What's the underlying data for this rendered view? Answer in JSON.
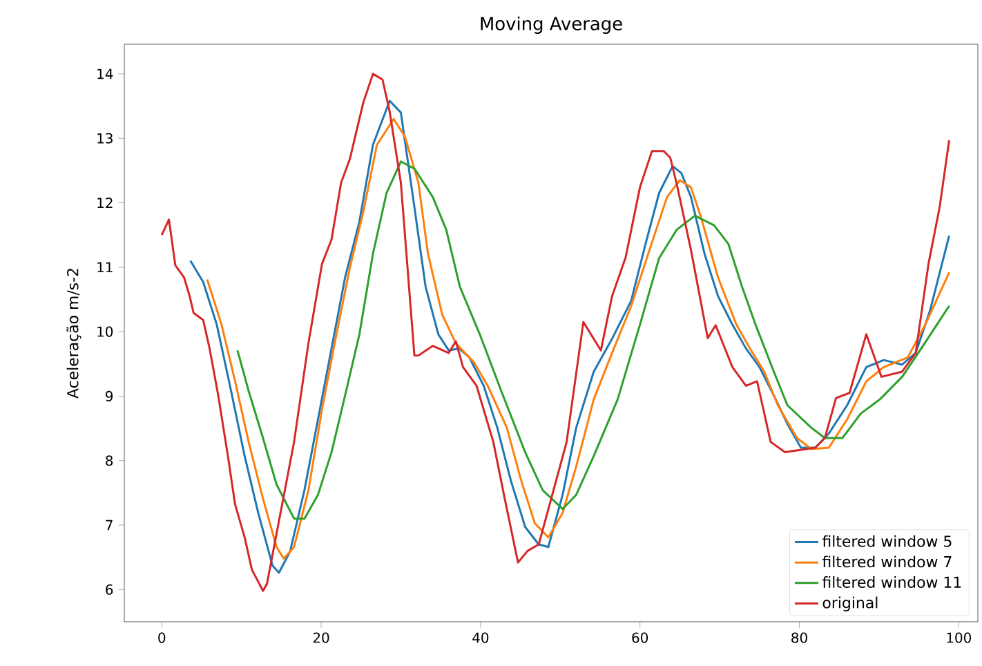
{
  "chart_data": {
    "type": "line",
    "title": "Moving Average",
    "ylabel": "Aceleração m/s-2",
    "xlim": [
      -4.7,
      102.4
    ],
    "ylim": [
      5.5,
      14.46
    ],
    "xticks": [
      0,
      20,
      40,
      60,
      80,
      100
    ],
    "yticks": [
      6,
      7,
      8,
      9,
      10,
      11,
      12,
      13,
      14
    ],
    "grid": false,
    "legend": "bottom right",
    "marker": "none",
    "line_style": "solid",
    "series": [
      {
        "name": "filtered window 5",
        "color": "#1f77b4",
        "x": [
          3.6,
          5.2,
          6.9,
          8.7,
          10.4,
          12.1,
          13.9,
          14.7,
          16.1,
          17.9,
          19.6,
          21.3,
          23,
          24.8,
          26.5,
          28.6,
          30,
          31.7,
          33.1,
          34.7,
          36,
          37.3,
          38.6,
          40.4,
          42.1,
          43.8,
          45.6,
          47.3,
          48.5,
          50.3,
          52,
          54.2,
          56.5,
          58.9,
          60.7,
          62.4,
          64.1,
          65.2,
          66.4,
          68.1,
          69.8,
          71.6,
          73.3,
          75,
          76.8,
          78.5,
          80.2,
          82,
          83.7,
          86,
          88.4,
          90.6,
          92.9,
          94.6,
          96.4,
          98.8
        ],
        "values": [
          11.1,
          10.77,
          10.11,
          9.08,
          8.07,
          7.19,
          6.37,
          6.26,
          6.59,
          7.54,
          8.64,
          9.74,
          10.84,
          11.71,
          12.9,
          13.58,
          13.4,
          11.93,
          10.7,
          9.96,
          9.71,
          9.74,
          9.6,
          9.16,
          8.51,
          7.69,
          6.97,
          6.7,
          6.66,
          7.47,
          8.51,
          9.38,
          9.89,
          10.48,
          11.36,
          12.15,
          12.57,
          12.46,
          12.09,
          11.21,
          10.55,
          10.11,
          9.74,
          9.45,
          9.01,
          8.57,
          8.2,
          8.2,
          8.42,
          8.86,
          9.45,
          9.56,
          9.49,
          9.67,
          10.33,
          11.49
        ]
      },
      {
        "name": "filtered window 7",
        "color": "#ff7f0e",
        "x": [
          5.7,
          7.5,
          9.2,
          10.9,
          12.7,
          14.4,
          15.3,
          16.6,
          18.4,
          20.1,
          21.8,
          23.6,
          25.3,
          27,
          29.1,
          30.5,
          32.2,
          33.4,
          35.2,
          36.9,
          39.2,
          40.9,
          43.3,
          45.1,
          46.8,
          48.5,
          50.3,
          52,
          54.2,
          56.5,
          58.9,
          61.2,
          63.4,
          65,
          66.4,
          67.6,
          69.8,
          72.1,
          73.8,
          75.6,
          77.3,
          79.7,
          81.5,
          83.7,
          86,
          88.4,
          90.6,
          93.6,
          95.8,
          98.8
        ],
        "values": [
          10.81,
          10.11,
          9.23,
          8.29,
          7.41,
          6.66,
          6.48,
          6.66,
          7.54,
          8.79,
          9.89,
          10.99,
          11.87,
          12.9,
          13.3,
          13.03,
          12.31,
          11.21,
          10.26,
          9.82,
          9.52,
          9.16,
          8.51,
          7.69,
          7.03,
          6.81,
          7.19,
          7.91,
          8.95,
          9.67,
          10.4,
          11.27,
          12.09,
          12.35,
          12.24,
          11.8,
          10.84,
          10.11,
          9.74,
          9.38,
          8.86,
          8.35,
          8.18,
          8.2,
          8.64,
          9.23,
          9.45,
          9.6,
          10.11,
          10.92
        ]
      },
      {
        "name": "filtered window 11",
        "color": "#2ca02c",
        "x": [
          9.5,
          10.9,
          12.7,
          14.4,
          16.6,
          17.9,
          19.6,
          21.3,
          23,
          24.8,
          26.5,
          28.2,
          30,
          31.7,
          34,
          35.7,
          37.4,
          39.9,
          42.6,
          45.6,
          47.8,
          50.3,
          52,
          54.2,
          57.2,
          60,
          62.4,
          64.6,
          66.9,
          69.3,
          71.1,
          72.8,
          74.5,
          76.8,
          78.5,
          81.5,
          83.2,
          85.4,
          87.7,
          90.1,
          92.9,
          95.3,
          98.8
        ],
        "values": [
          9.71,
          9.08,
          8.35,
          7.63,
          7.1,
          7.1,
          7.47,
          8.13,
          9.01,
          9.96,
          11.21,
          12.15,
          12.64,
          12.53,
          12.09,
          11.58,
          10.7,
          9.96,
          9.08,
          8.13,
          7.54,
          7.25,
          7.47,
          8.07,
          8.95,
          10.11,
          11.14,
          11.58,
          11.8,
          11.65,
          11.36,
          10.7,
          10.11,
          9.38,
          8.86,
          8.51,
          8.35,
          8.35,
          8.73,
          8.95,
          9.3,
          9.74,
          10.4
        ]
      },
      {
        "name": "original",
        "color": "#d62728",
        "x": [
          0,
          0.9,
          1.7,
          2.8,
          3.5,
          4,
          5.2,
          6,
          7.1,
          8.3,
          9.2,
          10.4,
          11.3,
          12.7,
          13.2,
          14.9,
          16.6,
          18.4,
          20.1,
          21.3,
          22.5,
          23.6,
          25.3,
          26.5,
          27.7,
          28.6,
          30,
          31.7,
          32.2,
          34,
          36,
          36.9,
          37.8,
          39.5,
          41.6,
          43,
          44.7,
          45.9,
          47.3,
          49,
          50.8,
          52.9,
          55.1,
          56.5,
          58.2,
          60,
          61.5,
          63,
          63.8,
          64.6,
          66.4,
          68.5,
          69.5,
          71.6,
          73.3,
          74.7,
          76.4,
          78.2,
          82,
          83.2,
          84.6,
          86.3,
          88.4,
          90.3,
          92.9,
          94.6,
          96.2,
          97.6,
          98.8
        ],
        "values": [
          11.5,
          11.74,
          11.03,
          10.84,
          10.55,
          10.29,
          10.18,
          9.74,
          9.0,
          8.07,
          7.32,
          6.81,
          6.31,
          5.98,
          6.09,
          7.19,
          8.29,
          9.82,
          11.05,
          11.43,
          12.31,
          12.68,
          13.56,
          14.0,
          13.91,
          13.41,
          12.31,
          9.63,
          9.63,
          9.78,
          9.67,
          9.85,
          9.45,
          9.16,
          8.29,
          7.43,
          6.42,
          6.6,
          6.7,
          7.47,
          8.29,
          10.15,
          9.71,
          10.55,
          11.15,
          12.24,
          12.8,
          12.8,
          12.7,
          12.3,
          11.27,
          9.9,
          10.1,
          9.45,
          9.16,
          9.23,
          8.29,
          8.13,
          8.2,
          8.35,
          8.97,
          9.05,
          9.96,
          9.3,
          9.38,
          9.67,
          11.05,
          11.93,
          12.97
        ]
      }
    ]
  }
}
